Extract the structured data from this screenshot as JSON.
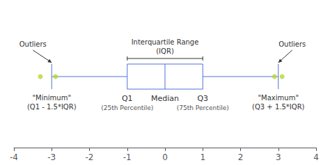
{
  "chart_data": {
    "type": "box",
    "q1": -1,
    "median": 0,
    "q3": 1,
    "whisker_low": -3,
    "whisker_high": 3,
    "outliers": [
      -3.3,
      -2.9,
      2.9,
      3.1
    ],
    "xlim": [
      -4,
      4
    ],
    "xticks": [
      -4,
      -3,
      -2,
      -1,
      0,
      1,
      2,
      3,
      4
    ],
    "grid": false,
    "iqr_text": "Interquartile Range\n(IQR)",
    "outlier_label": "Outliers",
    "min_label": "\"Minimum\"\n(Q1 - 1.5*IQR)",
    "max_label": "\"Maximum\"\n(Q3 + 1.5*IQR)",
    "q1_label": "Q1",
    "q1_sublabel": "(25th Percentile)",
    "median_label": "Median",
    "q3_label": "Q3",
    "q3_sublabel": "(75th Percentile)"
  }
}
